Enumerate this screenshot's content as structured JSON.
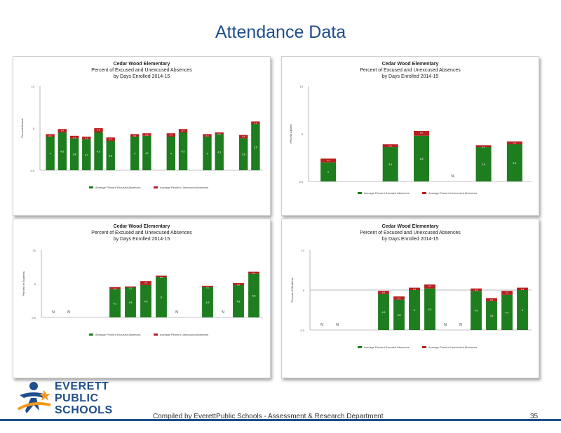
{
  "slide": {
    "title": "Attendance Data",
    "footer": "Compiled  by EverettPublic Schools  - Assessment & Research Department",
    "page_number": "35",
    "logo": {
      "line1": "EVERETT",
      "line2": "PUBLIC",
      "line3": "SCHOOLS"
    }
  },
  "colors": {
    "excused": "#1e7d1e",
    "unexcused": "#b52020",
    "title": "#1f4e8c"
  },
  "chart_data": [
    {
      "type": "bar",
      "stacked": true,
      "title": "Cedar Wood Elementary",
      "subtitle": "Percent of Excused and Unexcused Absences",
      "subtitle2": "by Days Enrolled 2014-15",
      "ylim": [
        0,
        10
      ],
      "yticks": [
        "10",
        "5",
        "0.0"
      ],
      "ylabel": "Percent Absent",
      "categories": [
        "",
        "",
        "",
        "",
        "",
        "",
        "",
        "",
        "",
        "",
        "",
        "",
        "",
        "",
        "",
        "",
        "",
        ""
      ],
      "series": [
        {
          "name": "Average Percent Excused Absences",
          "color": "#1e7d1e",
          "values": [
            4.0,
            4.5,
            3.8,
            3.7,
            4.5,
            3.5,
            null,
            4.0,
            4.1,
            null,
            4.0,
            4.5,
            null,
            4.0,
            4.3,
            null,
            3.8,
            5.5
          ]
        },
        {
          "name": "Average Percent Unexcused Absences",
          "color": "#b52020",
          "values": [
            0.3,
            0.4,
            0.3,
            0.3,
            0.5,
            0.4,
            null,
            0.3,
            0.3,
            null,
            0.4,
            0.4,
            null,
            0.3,
            0.2,
            null,
            0.4,
            0.3
          ]
        }
      ],
      "value_labels": [
        "",
        "",
        "",
        "",
        "",
        "",
        "",
        "",
        "",
        "",
        "",
        "",
        "",
        "",
        "",
        "",
        "",
        ""
      ],
      "notes": [
        "",
        "",
        ""
      ]
    },
    {
      "type": "bar",
      "stacked": true,
      "title": "Cedar Wood Elementary",
      "subtitle": "Percent of Excused and Unexcused Absences",
      "subtitle2": "by Days Enrolled 2014-15",
      "ylim": [
        0,
        10
      ],
      "yticks": [
        "10",
        "5",
        "0.0"
      ],
      "ylabel": "Percent Absent",
      "categories": [
        "",
        "",
        "",
        "",
        "",
        "",
        ""
      ],
      "series": [
        {
          "name": "Average Percent Excused Absences",
          "color": "#1e7d1e",
          "values": [
            2.0,
            null,
            3.6,
            4.8,
            null,
            3.6,
            3.9
          ]
        },
        {
          "name": "Average Percent Unexcused Absences",
          "color": "#b52020",
          "values": [
            0.4,
            null,
            0.3,
            0.5,
            null,
            0.2,
            0.3
          ]
        }
      ],
      "value_labels": [
        "",
        "",
        "",
        "",
        "N",
        "",
        ""
      ],
      "notes": [
        "",
        "",
        ""
      ]
    },
    {
      "type": "bar",
      "stacked": true,
      "title": "Cedar Wood Elementary",
      "subtitle": "Percent of Excused and Unexcused Absences",
      "subtitle2": "by Days Enrolled 2014-15",
      "ylim": [
        0,
        10
      ],
      "yticks": [
        "10",
        "5",
        "0.0"
      ],
      "ylabel": "Percent of Students",
      "categories": [
        "",
        "",
        "",
        "",
        "",
        "",
        "",
        "",
        "",
        "",
        "",
        "",
        "",
        ""
      ],
      "series": [
        {
          "name": "Average Percent Excused Absences",
          "color": "#1e7d1e",
          "values": [
            null,
            null,
            null,
            null,
            4.2,
            4.5,
            4.8,
            6.0,
            null,
            null,
            4.5,
            null,
            4.8,
            6.5
          ]
        },
        {
          "name": "Average Percent Unexcused Absences",
          "color": "#b52020",
          "values": [
            null,
            null,
            null,
            null,
            0.3,
            0.1,
            0.6,
            0.2,
            null,
            null,
            0.2,
            null,
            0.3,
            0.3
          ]
        }
      ],
      "value_labels": [
        "N",
        "N",
        "",
        "",
        "",
        "",
        "",
        "",
        "N",
        "",
        "",
        "N",
        "",
        ""
      ],
      "notes": [
        "",
        "",
        ""
      ]
    },
    {
      "type": "bar",
      "stacked": true,
      "title": "Cedar Wood Elementary",
      "subtitle": "Percent of Excused and Unexcused Absences",
      "subtitle2": "by Days Enrolled 2014-15",
      "ylim": [
        0,
        10
      ],
      "yticks": [
        "10",
        "5",
        "0.0"
      ],
      "ylabel": "Percent of Students",
      "categories": [
        "",
        "",
        "",
        "",
        "",
        "",
        "",
        "",
        "",
        "",
        "",
        "",
        "",
        ""
      ],
      "series": [
        {
          "name": "Average Percent Excused Absences",
          "color": "#1e7d1e",
          "values": [
            null,
            null,
            null,
            null,
            4.5,
            3.8,
            5.0,
            5.2,
            null,
            null,
            4.9,
            3.6,
            4.4,
            5.0
          ]
        },
        {
          "name": "Average Percent Unexcused Absences",
          "color": "#b52020",
          "values": [
            null,
            null,
            null,
            null,
            0.4,
            0.4,
            0.3,
            0.5,
            null,
            null,
            0.3,
            0.4,
            0.5,
            0.3
          ]
        }
      ],
      "value_labels": [
        "N",
        "N",
        "",
        "",
        "",
        "",
        "",
        "",
        "N",
        "N",
        "",
        "",
        "",
        ""
      ],
      "notes": [
        "",
        "",
        ""
      ]
    }
  ]
}
